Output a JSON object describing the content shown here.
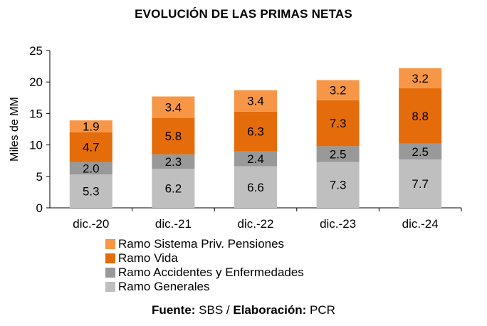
{
  "chart_data": {
    "type": "bar",
    "stacked": true,
    "title": "EVOLUCIÓN DE LAS PRIMAS NETAS",
    "ylabel": "Miles de MM",
    "xlabel": "",
    "ylim": [
      0,
      25
    ],
    "yticks": [
      "0",
      "5",
      "10",
      "15",
      "20",
      "25"
    ],
    "categories": [
      "dic.-20",
      "dic.-21",
      "dic.-22",
      "dic.-23",
      "dic.-24"
    ],
    "series": [
      {
        "name": "Ramo Generales",
        "values": [
          5.3,
          6.2,
          6.6,
          7.3,
          7.7
        ],
        "labels": [
          "5.3",
          "6.2",
          "6.6",
          "7.3",
          "7.7"
        ],
        "color": "#bfbfbf"
      },
      {
        "name": "Ramo Accidentes y Enfermedades",
        "values": [
          2.0,
          2.3,
          2.4,
          2.5,
          2.5
        ],
        "labels": [
          "2.0",
          "2.3",
          "2.4",
          "2.5",
          "2.5"
        ],
        "color": "#999999"
      },
      {
        "name": "Ramo Vida",
        "values": [
          4.7,
          5.8,
          6.3,
          7.3,
          8.8
        ],
        "labels": [
          "4.7",
          "5.8",
          "6.3",
          "7.3",
          "8.8"
        ],
        "color": "#e46c0a"
      },
      {
        "name": "Ramo Sistema Priv. Pensiones",
        "values": [
          1.9,
          3.4,
          3.4,
          3.2,
          3.2
        ],
        "labels": [
          "1.9",
          "3.4",
          "3.4",
          "3.2",
          "3.2"
        ],
        "color": "#f79646"
      }
    ],
    "legend": [
      "Ramo Sistema Priv. Pensiones",
      "Ramo Vida",
      "Ramo Accidentes y Enfermedades",
      "Ramo Generales"
    ],
    "legend_position": "bottom"
  },
  "source": {
    "label1": "Fuente:",
    "text1": " SBS / ",
    "label2": "Elaboración:",
    "text2": " PCR"
  }
}
